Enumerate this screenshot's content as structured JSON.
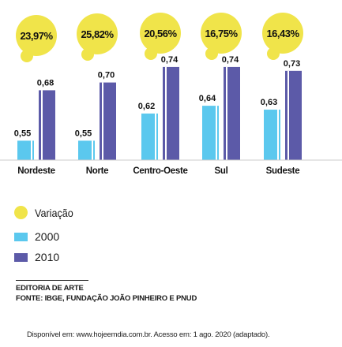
{
  "chart_data": {
    "type": "bar",
    "categories": [
      "Nordeste",
      "Norte",
      "Centro-Oeste",
      "Sul",
      "Sudeste"
    ],
    "series": [
      {
        "name": "2000",
        "values": [
          0.55,
          0.55,
          0.62,
          0.64,
          0.63
        ],
        "labels": [
          "0,55",
          "0,55",
          "0,62",
          "0,64",
          "0,63"
        ],
        "color": "#5bc8ee"
      },
      {
        "name": "2010",
        "values": [
          0.68,
          0.7,
          0.74,
          0.74,
          0.73
        ],
        "labels": [
          "0,68",
          "0,70",
          "0,74",
          "0,74",
          "0,73"
        ],
        "color": "#5c5aa8"
      }
    ],
    "variation": {
      "name": "Variação",
      "labels": [
        "23,97%",
        "25,82%",
        "20,56%",
        "16,75%",
        "16,43%"
      ],
      "color": "#f0e44a"
    },
    "ylim": [
      0.5,
      0.75
    ],
    "legend_placement": "bottom-left"
  },
  "legend": {
    "variation": "Variação",
    "y2000": "2000",
    "y2010": "2010"
  },
  "source": {
    "line1": "EDITORIA DE ARTE",
    "line2": "FONTE: IBGE, FUNDAÇÃO JOÃO PINHEIRO E PNUD",
    "availability": "Disponível em: www.hojeemdia.com.br. Acesso em: 1 ago. 2020 (adaptado)."
  }
}
